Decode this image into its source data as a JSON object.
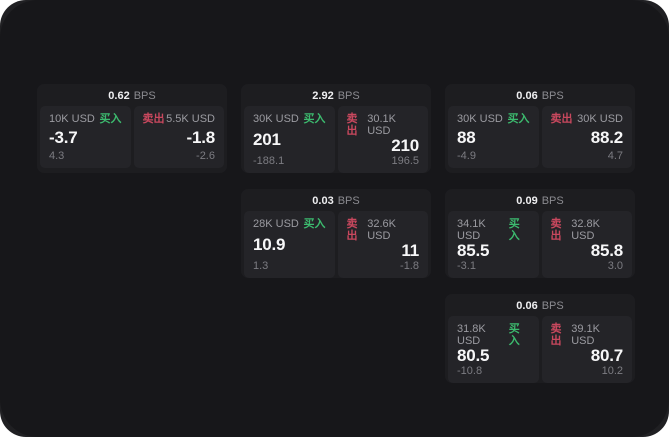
{
  "labels": {
    "bps_unit": "BPS",
    "buy": "买入",
    "sell": "卖出"
  },
  "colors": {
    "page_bg": "#17171a",
    "rim_bg": "#202023",
    "card_bg": "#1d1d20",
    "panel_bg": "#242428",
    "buy_green": "#3cba6e",
    "sell_red": "#c9485e",
    "text_primary": "#f7f7f8",
    "text_muted": "#9b9ba1",
    "text_dim": "#7c7c82"
  },
  "cards": [
    {
      "spread": "0.62",
      "buy": {
        "amount": "10K USD",
        "price": "-3.7",
        "delta": "4.3"
      },
      "sell": {
        "amount": "5.5K USD",
        "price": "-1.8",
        "delta": "-2.6"
      }
    },
    {
      "spread": "2.92",
      "buy": {
        "amount": "30K USD",
        "price": "201",
        "delta": "-188.1"
      },
      "sell": {
        "amount": "30.1K USD",
        "price": "210",
        "delta": "196.5"
      }
    },
    {
      "spread": "0.06",
      "buy": {
        "amount": "30K USD",
        "price": "88",
        "delta": "-4.9"
      },
      "sell": {
        "amount": "30K USD",
        "price": "88.2",
        "delta": "4.7"
      }
    },
    {
      "spread": "0.03",
      "buy": {
        "amount": "28K USD",
        "price": "10.9",
        "delta": "1.3"
      },
      "sell": {
        "amount": "32.6K USD",
        "price": "11",
        "delta": "-1.8"
      }
    },
    {
      "spread": "0.09",
      "buy": {
        "amount": "34.1K USD",
        "price": "85.5",
        "delta": "-3.1"
      },
      "sell": {
        "amount": "32.8K USD",
        "price": "85.8",
        "delta": "3.0"
      }
    },
    {
      "spread": "0.06",
      "buy": {
        "amount": "31.8K USD",
        "price": "80.5",
        "delta": "-10.8"
      },
      "sell": {
        "amount": "39.1K USD",
        "price": "80.7",
        "delta": "10.2"
      }
    }
  ]
}
